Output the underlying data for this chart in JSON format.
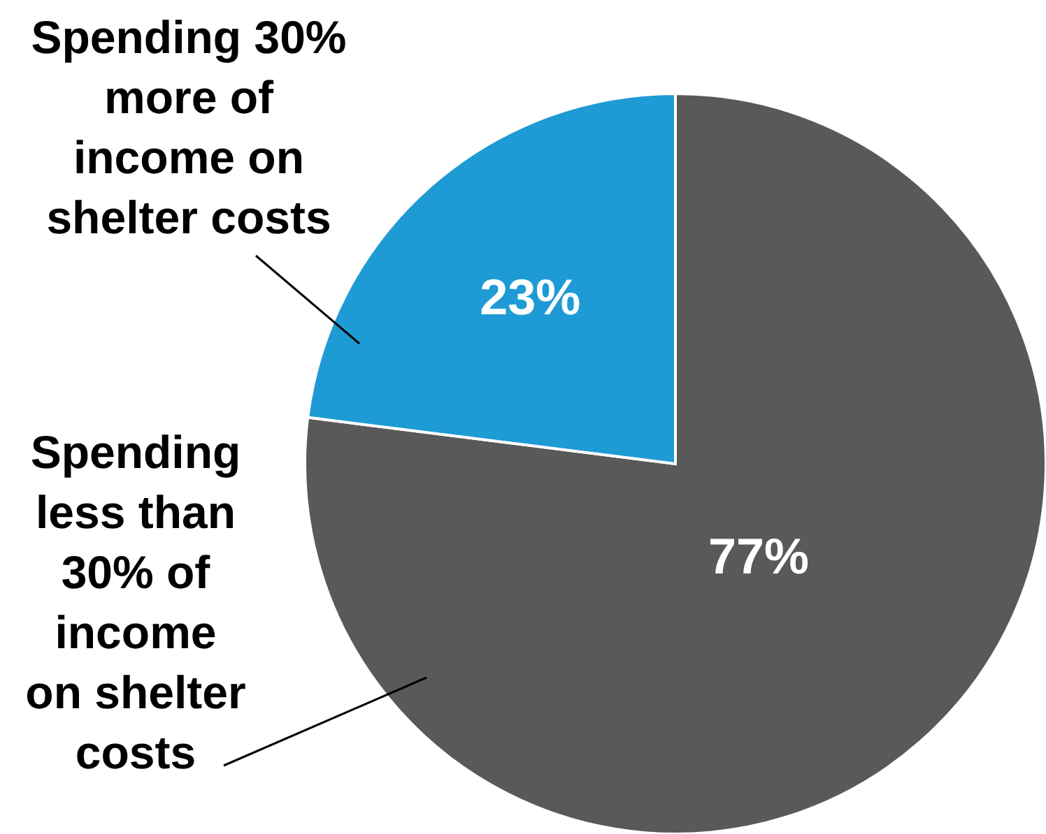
{
  "chart_data": {
    "type": "pie",
    "categories": [
      "Spending less than 30% of income on shelter costs",
      "Spending 30% more of income on shelter costs"
    ],
    "values": [
      77,
      23
    ],
    "colors": [
      "#595959",
      "#1e9bd5"
    ],
    "value_labels": [
      "77%",
      "23%"
    ]
  }
}
